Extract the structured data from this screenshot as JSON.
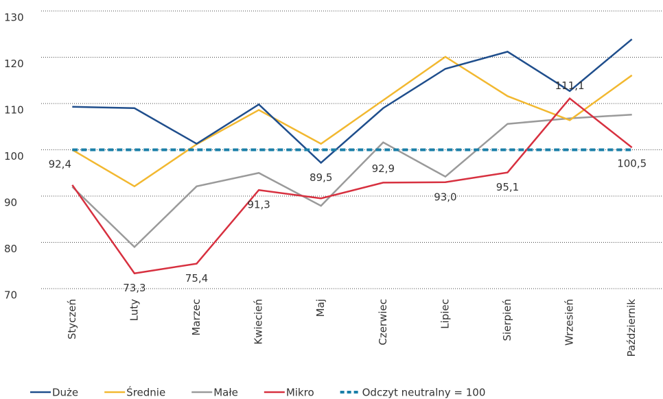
{
  "chart_data": {
    "type": "line",
    "categories": [
      "Styczeń",
      "Luty",
      "Marzec",
      "Kwiecień",
      "Maj",
      "Czerwiec",
      "Lipiec",
      "Sierpień",
      "Wrzesień",
      "Październik"
    ],
    "series": [
      {
        "name": "Duże",
        "color": "#1f4e8c",
        "values": [
          109.3,
          109.0,
          101.3,
          109.8,
          97.2,
          109.0,
          117.5,
          121.2,
          112.7,
          123.9
        ]
      },
      {
        "name": "Średnie",
        "color": "#f2b830",
        "values": [
          100.0,
          92.1,
          101.2,
          108.6,
          101.3,
          110.7,
          120.1,
          111.6,
          106.4,
          116.1
        ]
      },
      {
        "name": "Małe",
        "color": "#9a9a9a",
        "values": [
          92.0,
          79.0,
          92.1,
          95.0,
          87.9,
          101.6,
          94.2,
          105.6,
          106.8,
          107.6
        ]
      },
      {
        "name": "Mikro",
        "color": "#d7303f",
        "values": [
          92.4,
          73.3,
          75.4,
          91.3,
          89.5,
          92.9,
          93.0,
          95.1,
          111.1,
          100.5
        ],
        "value_labels": [
          "92,4",
          "73,3",
          "75,4",
          "91,3",
          "89,5",
          "92,9",
          "93,0",
          "95,1",
          "111,1",
          "100,5"
        ]
      },
      {
        "name": "Odczyt neutralny = 100",
        "color": "#1a7fa8",
        "dashed": true,
        "values": [
          100,
          100,
          100,
          100,
          100,
          100,
          100,
          100,
          100,
          100
        ]
      }
    ],
    "ylim": [
      70,
      130
    ],
    "yticks": [
      70,
      80,
      90,
      100,
      110,
      120,
      130
    ],
    "grid": true
  }
}
